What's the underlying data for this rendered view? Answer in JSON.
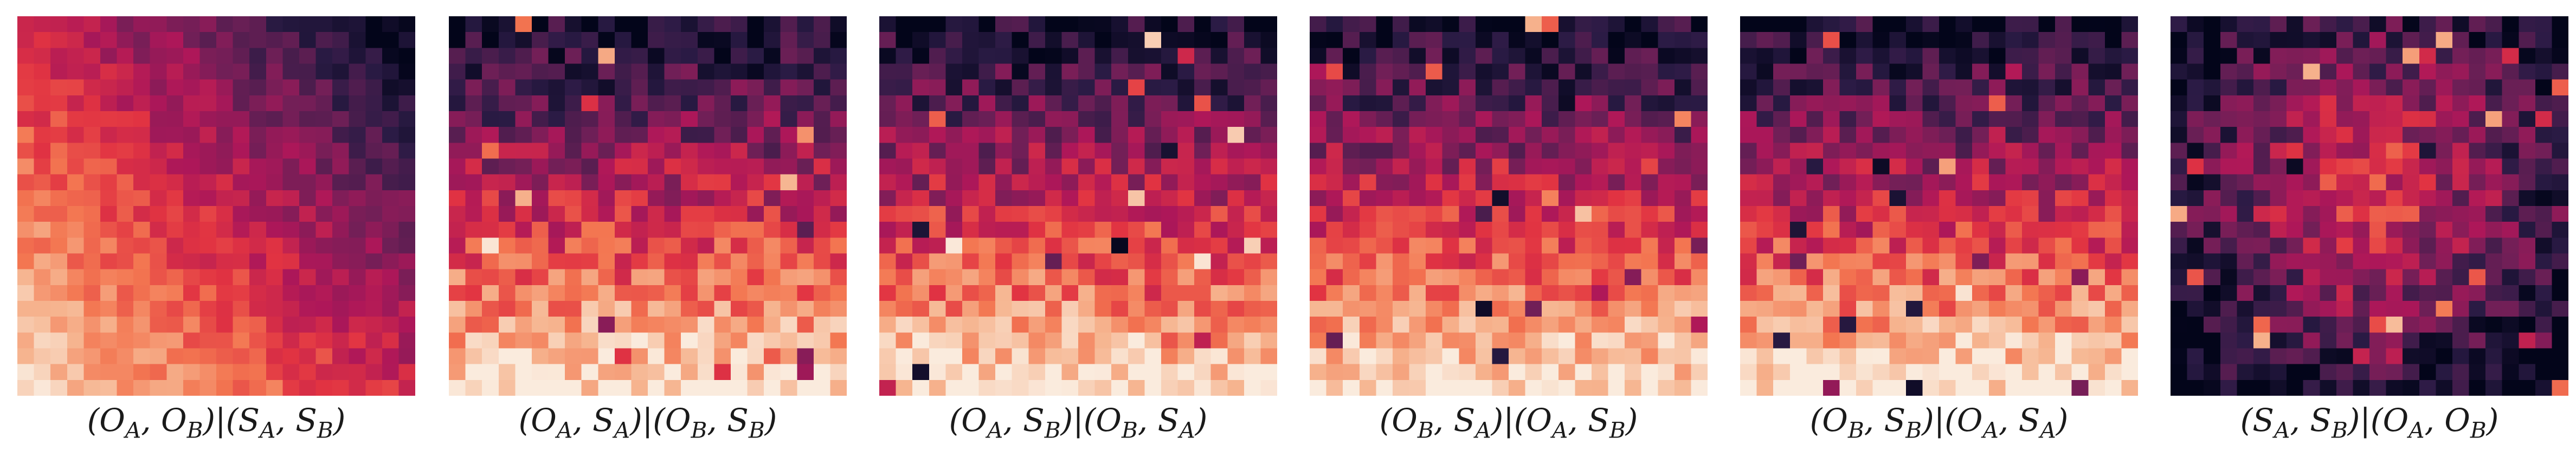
{
  "chart_data": [
    {
      "type": "heatmap",
      "pattern": "diagonal",
      "seed": 11,
      "title": "(O_A, O_B)|(S_A, S_B)"
    },
    {
      "type": "heatmap",
      "pattern": "vertical",
      "seed": 23,
      "title": "(O_A, S_A)|(O_B, S_B)"
    },
    {
      "type": "heatmap",
      "pattern": "vertical",
      "seed": 37,
      "title": "(O_A, S_B)|(O_B, S_A)"
    },
    {
      "type": "heatmap",
      "pattern": "vertical",
      "seed": 41,
      "title": "(O_B, S_A)|(O_A, S_B)"
    },
    {
      "type": "heatmap",
      "pattern": "vertical",
      "seed": 53,
      "title": "(O_B, S_B)|(O_A, S_A)"
    },
    {
      "type": "heatmap",
      "pattern": "center",
      "seed": 67,
      "title": "(S_A, S_B)|(O_A, O_B)"
    }
  ],
  "colormap": [
    "#03051a",
    "#2b1b45",
    "#701f57",
    "#ad1759",
    "#e13342",
    "#f37651",
    "#f6b48f",
    "#faebdd"
  ],
  "grid_size": 24,
  "captions": [
    "(OA, OB)|(SA, SB)",
    "(OA, SA)|(OB, SB)",
    "(OA, SB)|(OB, SA)",
    "(OB, SA)|(OA, SB)",
    "(OB, SB)|(OA, SA)",
    "(SA, SB)|(OA, OB)"
  ]
}
